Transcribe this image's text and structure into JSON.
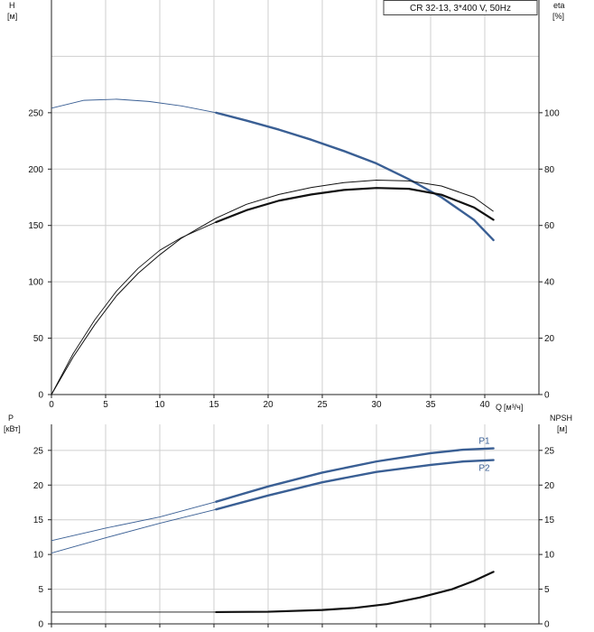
{
  "chart_data": [
    {
      "type": "line",
      "legend": "CR 32-13, 3*400 V, 50Hz",
      "y_left": {
        "name": "H",
        "unit": "[м]",
        "ylim": [
          0,
          350
        ],
        "ticks": [
          0,
          50,
          100,
          150,
          200,
          250
        ],
        "grid_extra": [
          300
        ]
      },
      "y_right": {
        "name": "eta",
        "unit": "[%]",
        "ylim": [
          0,
          140
        ],
        "ticks": [
          0,
          20,
          40,
          60,
          80,
          100
        ]
      },
      "x": {
        "name": "Q",
        "unit": "[м³/ч]",
        "xlim": [
          0,
          45
        ],
        "ticks": [
          0,
          5,
          10,
          15,
          20,
          25,
          30,
          35,
          40
        ]
      },
      "grid": true,
      "series": [
        {
          "name": "",
          "axis": "left",
          "color": "#3a5f94",
          "thin_until": 15.2,
          "x": [
            0,
            3,
            6,
            9,
            12,
            15.2,
            18,
            21,
            24,
            27,
            30,
            33,
            36,
            39,
            40.8
          ],
          "y": [
            254,
            261,
            262,
            260,
            256,
            250,
            243,
            235,
            226,
            216,
            205,
            191,
            175,
            155,
            137
          ]
        },
        {
          "name": "",
          "axis": "right",
          "color": "#111111",
          "thin_until": 15.2,
          "x": [
            0,
            2,
            4,
            6,
            8,
            10,
            12,
            15.2,
            18,
            21,
            24,
            27,
            30,
            33,
            36,
            39,
            40.8
          ],
          "y": [
            0,
            14.5,
            26.5,
            36.7,
            44.8,
            51.2,
            55.7,
            61.2,
            65.4,
            68.8,
            71.0,
            72.6,
            73.3,
            73.0,
            70.9,
            66.4,
            62.0
          ]
        },
        {
          "name": "",
          "axis": "right",
          "color": "#111111",
          "thin_until": 99,
          "x": [
            0,
            2,
            4,
            6,
            8,
            10,
            12,
            15.2,
            18,
            21,
            24,
            27,
            30,
            33,
            36,
            39,
            40.8
          ],
          "y": [
            0,
            13.3,
            24.8,
            35.0,
            43.0,
            49.6,
            55.5,
            62.6,
            67.5,
            71.0,
            73.5,
            75.2,
            76.1,
            75.8,
            74.0,
            70.0,
            65.0
          ]
        }
      ]
    },
    {
      "type": "line",
      "y_left": {
        "name": "P",
        "unit": "[кВт]",
        "ylim": [
          0,
          28.75
        ],
        "ticks": [
          0,
          5,
          10,
          15,
          20,
          25
        ]
      },
      "y_right": {
        "name": "NPSH",
        "unit": "[м]",
        "ylim": [
          0,
          28.75
        ],
        "ticks": [
          0,
          5,
          10,
          15,
          20,
          25
        ]
      },
      "x": {
        "xlim": [
          0,
          45
        ],
        "ticks": [
          0,
          5,
          10,
          15,
          20,
          25,
          30,
          35,
          40
        ]
      },
      "grid": true,
      "series": [
        {
          "name": "P1",
          "axis": "left",
          "color": "#3a5f94",
          "thin_until": 15.2,
          "x": [
            0,
            5,
            10,
            15.2,
            20,
            25,
            30,
            35,
            38,
            40.8
          ],
          "y": [
            12.0,
            13.8,
            15.4,
            17.6,
            19.8,
            21.8,
            23.4,
            24.6,
            25.1,
            25.3
          ]
        },
        {
          "name": "P2",
          "axis": "left",
          "color": "#3a5f94",
          "thin_until": 15.2,
          "x": [
            0,
            5,
            10,
            15.2,
            20,
            25,
            30,
            35,
            38,
            40.8
          ],
          "y": [
            10.2,
            12.4,
            14.5,
            16.5,
            18.5,
            20.4,
            21.9,
            22.9,
            23.4,
            23.6
          ]
        },
        {
          "name": "",
          "axis": "right",
          "color": "#111111",
          "thin_until": 15.2,
          "x": [
            0,
            5,
            10,
            15.2,
            20,
            25,
            28,
            31,
            34,
            37,
            39,
            40.8
          ],
          "y": [
            1.7,
            1.7,
            1.7,
            1.7,
            1.75,
            2.0,
            2.3,
            2.85,
            3.8,
            5.0,
            6.2,
            7.5
          ]
        }
      ]
    }
  ]
}
